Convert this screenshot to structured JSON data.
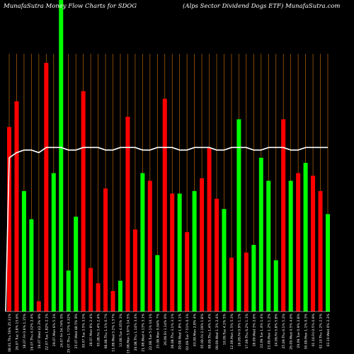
{
  "chart_data": {
    "type": "bar",
    "title_left": "MunafaSutra  Money Flow  Charts for SDOG",
    "title_right": "(Alps Sector Dividend Dogs ETF) MunafaSutra.com",
    "colors": {
      "background": "#000000",
      "up": "#00ff00",
      "down": "#ff0000",
      "line": "#ffffff",
      "grid": "#b8650a"
    },
    "ylim": [
      0,
      100
    ],
    "grid": "vertical",
    "categories": [
      "08.01.Thu 56% 25.31%",
      "26.07.Tue 3.8% 15.6%",
      "18.07.Fri 0.6% 1.15%",
      "19.07.Thu 4.32% 2.4%",
      "18.07.Wed 42.3% 9%",
      "22.07.Tue 1.82% 2.1%",
      "29.07.Mon 6% 5.1%",
      "24.07.Fri 54.74% 0%",
      "25.07.Thu 1.73% 4.32%",
      "25.07.Wed 48.5% 9%",
      "30.07.Tue 3.5% 3.5%",
      "28.07.Mon 8% 2.4%",
      "05.08.Fri 3.4% 2.4%",
      "08.08.Thu 1.1% 0.7%",
      "11.08.Wed 5.2% 1.57%",
      "13.08.Tue 4.05% 3%",
      "15.08.Mon 5.97% 14.5%",
      "20.08.Thu 1.14% 3.4%",
      "21.08.Wed 4.13% 3.1%",
      "22.08.Tue 5.1% 10.1%",
      "25.08.Mon 0.04% 7%",
      "26.08.Fri 1.14% 6%",
      "28.08.Thu 3.1% 3.1%",
      "29.08.Wed 1.8% 3.1%",
      "02.09.Tue 7.51% 0.1%",
      "03.09.Mon 2.8% 4%",
      "05.09.Fri 2.19% 1.8%",
      "08.09.Thu 1.4% 5.4%",
      "09.09.Wed 1.3% 2.4%",
      "10.09.Tue 4.1% 5%",
      "12.09.Mon 1.5% 5.3%",
      "16.09.Fri 0.9% 1.1%",
      "17.09.Thu 6.2% 1.1%",
      "18.09.Wed 3% 2.6%",
      "22.09.Tue 1.4% 1.4%",
      "23.09.Mon 1.2% 1.2%",
      "24.09.Fri 5.8% 5.8%",
      "25.09.Thu 6.1% 5.2%",
      "26.09.Wed 4.5% 4.6%",
      "29.09.Tue 0.9% 2.8%",
      "30.09.Mon 1.1% 0.3%",
      "01.10.Fri 0.5% 0.9%",
      "02.10.Thu 1.2% 2.5%",
      "03.10.Wed 0% 2.3%"
    ],
    "series": [
      {
        "values": [
          72,
          82,
          47,
          36,
          4,
          97,
          54,
          100,
          16,
          37,
          86,
          17,
          11,
          48,
          8,
          12,
          76,
          32,
          54,
          51,
          22,
          83,
          46,
          46,
          31,
          47,
          52,
          64,
          44,
          40,
          21,
          75,
          23,
          26,
          60,
          51,
          20,
          75,
          51,
          54,
          58,
          53,
          47,
          38
        ],
        "colors": [
          "down",
          "down",
          "up",
          "up",
          "down",
          "down",
          "up",
          "up",
          "up",
          "up",
          "down",
          "down",
          "down",
          "down",
          "down",
          "up",
          "down",
          "down",
          "up",
          "down",
          "up",
          "down",
          "down",
          "up",
          "down",
          "up",
          "down",
          "down",
          "down",
          "up",
          "down",
          "up",
          "down",
          "up",
          "up",
          "up",
          "up",
          "down",
          "up",
          "down",
          "up",
          "down",
          "down",
          "up"
        ]
      }
    ],
    "line": [
      60,
      62,
      63,
      63,
      62,
      64,
      64,
      64,
      63,
      63,
      64,
      64,
      64,
      63,
      63,
      64,
      64,
      64,
      63,
      63,
      64,
      64,
      64,
      63,
      63,
      64,
      64,
      64,
      63,
      63,
      64,
      64,
      64,
      63,
      63,
      64,
      64,
      64,
      63,
      63,
      64,
      64,
      64,
      64
    ]
  }
}
